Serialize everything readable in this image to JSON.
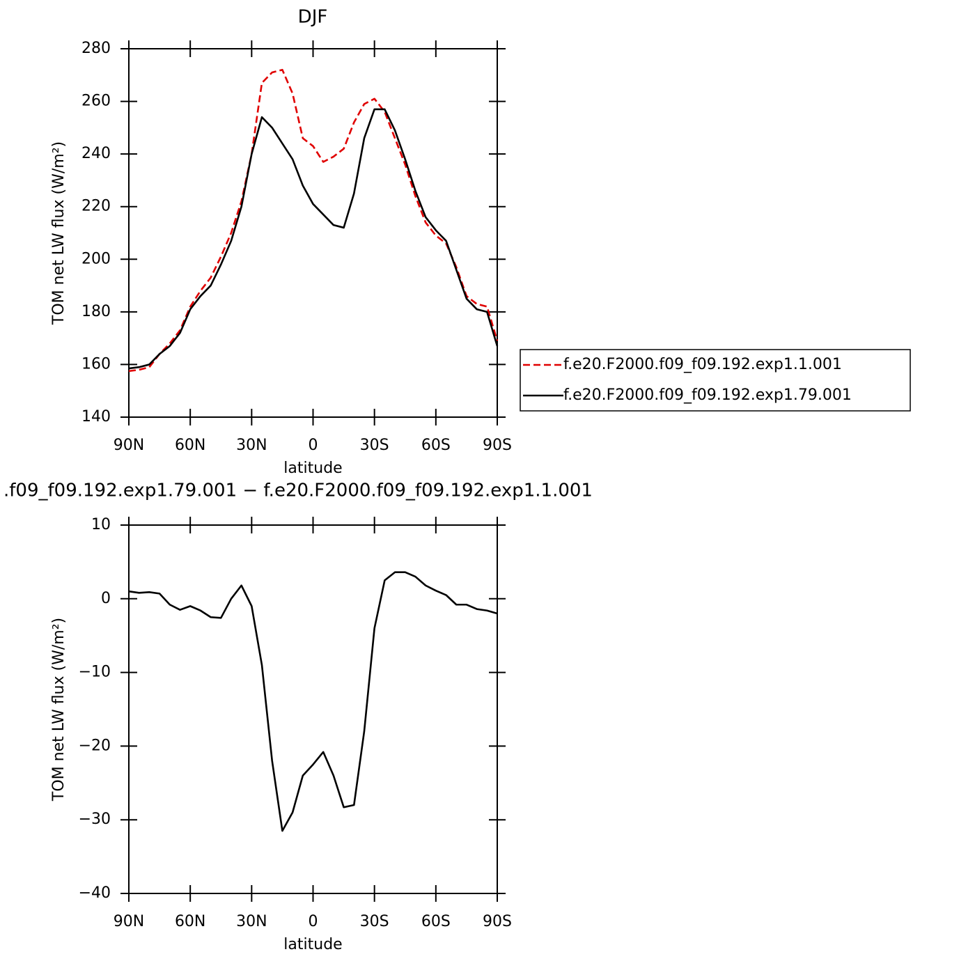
{
  "chart_data": [
    {
      "type": "line",
      "title": "DJF",
      "xlabel": "latitude",
      "ylabel": "TOM net LW flux (W/m²)",
      "x": [
        90,
        85,
        80,
        75,
        70,
        65,
        60,
        55,
        50,
        45,
        40,
        35,
        30,
        25,
        20,
        15,
        10,
        5,
        0,
        -5,
        -10,
        -15,
        -20,
        -25,
        -30,
        -35,
        -40,
        -45,
        -50,
        -55,
        -60,
        -65,
        -70,
        -75,
        -80,
        -85,
        -90
      ],
      "xlim": [
        90,
        -90
      ],
      "xticks": [
        {
          "value": 90,
          "label": "90N"
        },
        {
          "value": 60,
          "label": "60N"
        },
        {
          "value": 30,
          "label": "30N"
        },
        0,
        {
          "value": -30,
          "label": "30S"
        },
        {
          "value": -60,
          "label": "60S"
        },
        {
          "value": -90,
          "label": "90S"
        }
      ],
      "ylim": [
        140,
        280
      ],
      "yticks": [
        140,
        160,
        180,
        200,
        220,
        240,
        260,
        280
      ],
      "legend": "right",
      "series": [
        {
          "name": "f.e20.F2000.f09_f09.192.exp1.1.001",
          "color": "#e00000",
          "line_style": "dashed",
          "values": [
            157.5,
            158,
            159,
            164,
            168,
            173,
            182,
            188,
            193,
            201,
            210,
            222,
            240,
            267,
            271,
            272,
            263,
            246,
            243,
            237,
            239,
            242,
            252,
            259,
            261,
            256,
            246,
            236,
            224,
            214,
            209,
            206,
            197,
            186,
            183,
            182,
            169
          ]
        },
        {
          "name": "f.e20.F2000.f09_f09.192.exp1.79.001",
          "color": "#000000",
          "line_style": "solid",
          "values": [
            158.5,
            159,
            160,
            164,
            167,
            172,
            181,
            186,
            190,
            198,
            207,
            220,
            240,
            254,
            250,
            244,
            238,
            228,
            221,
            217,
            213,
            212,
            225,
            246,
            257,
            257,
            249,
            238,
            226,
            216,
            211,
            207,
            196,
            185,
            181,
            180,
            167
          ]
        }
      ]
    },
    {
      "type": "line",
      "title": ".f09_f09.192.exp1.79.001 − f.e20.F2000.f09_f09.192.exp1.1.001",
      "xlabel": "latitude",
      "ylabel": "TOM net LW flux (W/m²)",
      "x": [
        90,
        85,
        80,
        75,
        70,
        65,
        60,
        55,
        50,
        45,
        40,
        35,
        30,
        25,
        20,
        15,
        10,
        5,
        0,
        -5,
        -10,
        -15,
        -20,
        -25,
        -30,
        -35,
        -40,
        -45,
        -50,
        -55,
        -60,
        -65,
        -70,
        -75,
        -80,
        -85,
        -90
      ],
      "xlim": [
        90,
        -90
      ],
      "xticks": [
        {
          "value": 90,
          "label": "90N"
        },
        {
          "value": 60,
          "label": "60N"
        },
        {
          "value": 30,
          "label": "30N"
        },
        0,
        {
          "value": -30,
          "label": "30S"
        },
        {
          "value": -60,
          "label": "60S"
        },
        {
          "value": -90,
          "label": "90S"
        }
      ],
      "ylim": [
        -40,
        10
      ],
      "yticks": [
        {
          "value": -40,
          "label": "−40"
        },
        {
          "value": -30,
          "label": "−30"
        },
        {
          "value": -20,
          "label": "−20"
        },
        {
          "value": -10,
          "label": "−10"
        },
        0,
        10
      ],
      "series": [
        {
          "color": "#000000",
          "line_style": "solid",
          "values": [
            1,
            0.8,
            0.9,
            0.7,
            -0.8,
            -1.5,
            -1,
            -1.6,
            -2.5,
            -2.6,
            0,
            1.8,
            -1,
            -9,
            -22,
            -31.5,
            -29,
            -24,
            -22.5,
            -20.8,
            -24,
            -28.3,
            -28,
            -18,
            -4,
            2.5,
            3.6,
            3.6,
            3,
            1.8,
            1.1,
            0.5,
            -0.8,
            -0.8,
            -1.4,
            -1.6,
            -2
          ]
        }
      ]
    }
  ]
}
